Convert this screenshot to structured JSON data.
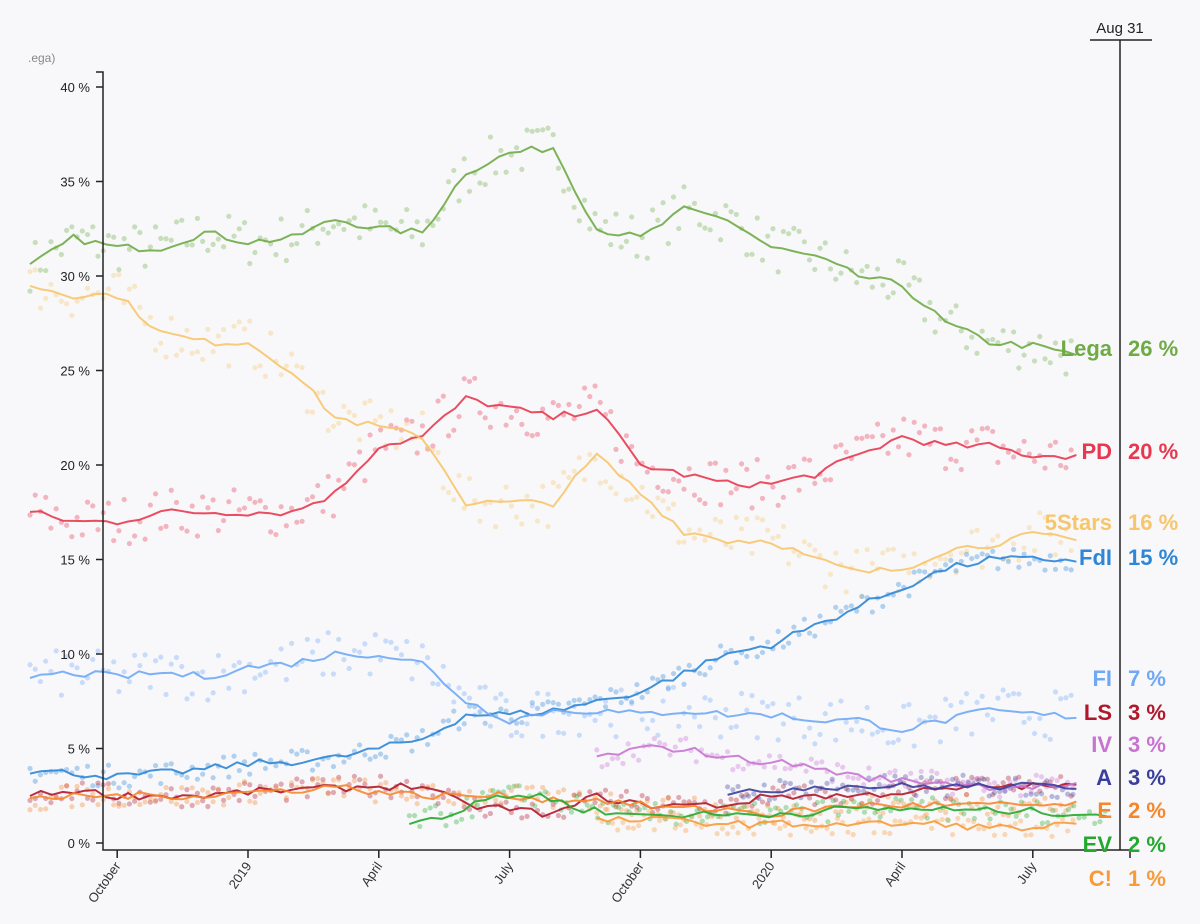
{
  "chart_data": {
    "type": "line",
    "title": "",
    "ylabel": ".ega)",
    "ylim": [
      0,
      40
    ],
    "yticks": [
      "0 %",
      "5 %",
      "10 %",
      "15 %",
      "20 %",
      "25 %",
      "30 %",
      "35 %",
      "40 %"
    ],
    "xticks": [
      {
        "label": "October",
        "m": 2
      },
      {
        "label": "2019",
        "m": 5
      },
      {
        "label": "April",
        "m": 8
      },
      {
        "label": "July",
        "m": 11
      },
      {
        "label": "October",
        "m": 14
      },
      {
        "label": "2020",
        "m": 17
      },
      {
        "label": "April",
        "m": 20
      },
      {
        "label": "July",
        "m": 23
      }
    ],
    "x_unit": "months since Aug 2018",
    "xlim": [
      0,
      25
    ],
    "cursor_label": "Aug 31",
    "series": [
      {
        "name": "Lega",
        "value": "26 %",
        "color": "#6fab45",
        "start": 0,
        "values": [
          30.5,
          32,
          31.5,
          31.5,
          32.3,
          31.8,
          32,
          33,
          32.5,
          32.3,
          35.5,
          36.5,
          36.8,
          32.5,
          32,
          33.5,
          33,
          31.5,
          31,
          30,
          29.5,
          27.5,
          26.5,
          26.3,
          25.8
        ]
      },
      {
        "name": "PD",
        "value": "20 %",
        "color": "#e8384f",
        "start": 0,
        "values": [
          17.5,
          17,
          17,
          17.5,
          17.5,
          17.5,
          17.5,
          18.5,
          21,
          21.5,
          23.5,
          23,
          22.5,
          23,
          20,
          19.5,
          19,
          19,
          19.5,
          20.5,
          21.5,
          21,
          21,
          20.5,
          20.5
        ]
      },
      {
        "name": "5Stars",
        "value": "16 %",
        "color": "#f7c56b",
        "start": 0,
        "values": [
          29.5,
          29,
          29,
          27,
          26.5,
          26.5,
          25,
          22.5,
          22,
          21.5,
          18,
          18,
          18,
          20.5,
          18.5,
          16.5,
          16,
          16,
          15,
          14.3,
          14.5,
          15.5,
          15.8,
          16.3,
          16
        ]
      },
      {
        "name": "FdI",
        "value": "15 %",
        "color": "#2e86d6",
        "start": 0,
        "values": [
          3.8,
          3.7,
          3.5,
          3.7,
          3.9,
          4.2,
          4.3,
          4.5,
          5,
          5.5,
          6.8,
          6.8,
          7,
          7.5,
          8,
          9,
          10,
          10.5,
          11.5,
          12.5,
          13.5,
          14.5,
          15,
          15,
          15
        ]
      },
      {
        "name": "FI",
        "value": "7 %",
        "color": "#6fa8f5",
        "start": 0,
        "values": [
          8.8,
          9,
          8.8,
          9,
          8.8,
          9.3,
          9.5,
          10,
          10,
          9.5,
          7.5,
          6.5,
          7,
          7,
          6.8,
          7,
          6.8,
          6.8,
          6.5,
          6.5,
          6,
          6.5,
          7,
          6.8,
          6.7
        ]
      },
      {
        "name": "LS",
        "value": "3 %",
        "color": "#b0182b",
        "start": 0,
        "values": [
          2.5,
          2.8,
          2.5,
          2.5,
          2.5,
          2.7,
          2.8,
          2.9,
          3,
          3,
          2,
          1.8,
          1.5,
          2.5,
          2,
          2,
          2,
          2.5,
          2.5,
          2.5,
          2.7,
          2.8,
          3,
          3,
          3
        ]
      },
      {
        "name": "IV",
        "value": "3 %",
        "color": "#c774d0",
        "start": 13,
        "values": [
          4.5,
          5,
          5,
          4.5,
          4.3,
          4,
          3.5,
          3.3,
          3.2,
          3,
          3,
          3
        ]
      },
      {
        "name": "A",
        "value": "3 %",
        "color": "#3a3f9e",
        "start": 16,
        "values": [
          2.5,
          2.8,
          3,
          3,
          3,
          3,
          3,
          3,
          3
        ]
      },
      {
        "name": "E",
        "value": "2 %",
        "color": "#f7862a",
        "start": 0,
        "values": [
          2.2,
          2.5,
          2.5,
          2.5,
          2.5,
          2.7,
          2.8,
          3,
          2.7,
          2.5,
          2.5,
          2.5,
          2.3,
          2.3,
          2,
          1.8,
          1.8,
          1.5,
          1.8,
          2,
          2,
          2,
          2,
          2,
          2
        ]
      },
      {
        "name": "EV",
        "value": "2 %",
        "color": "#25a82e",
        "start": 8.7,
        "values": [
          1.2,
          1.5,
          2.5,
          2.5,
          1.8,
          1.5,
          1.5,
          1.5,
          1.5,
          1.6,
          1.8,
          1.8,
          1.8,
          1.7,
          1.7,
          1.6,
          1.5
        ]
      },
      {
        "name": "C!",
        "value": "1 %",
        "color": "#f99a37",
        "start": 13,
        "values": [
          1.2,
          1.2,
          1.2,
          1,
          1,
          1,
          1,
          1,
          1,
          0.8,
          0.8,
          1
        ]
      }
    ]
  }
}
